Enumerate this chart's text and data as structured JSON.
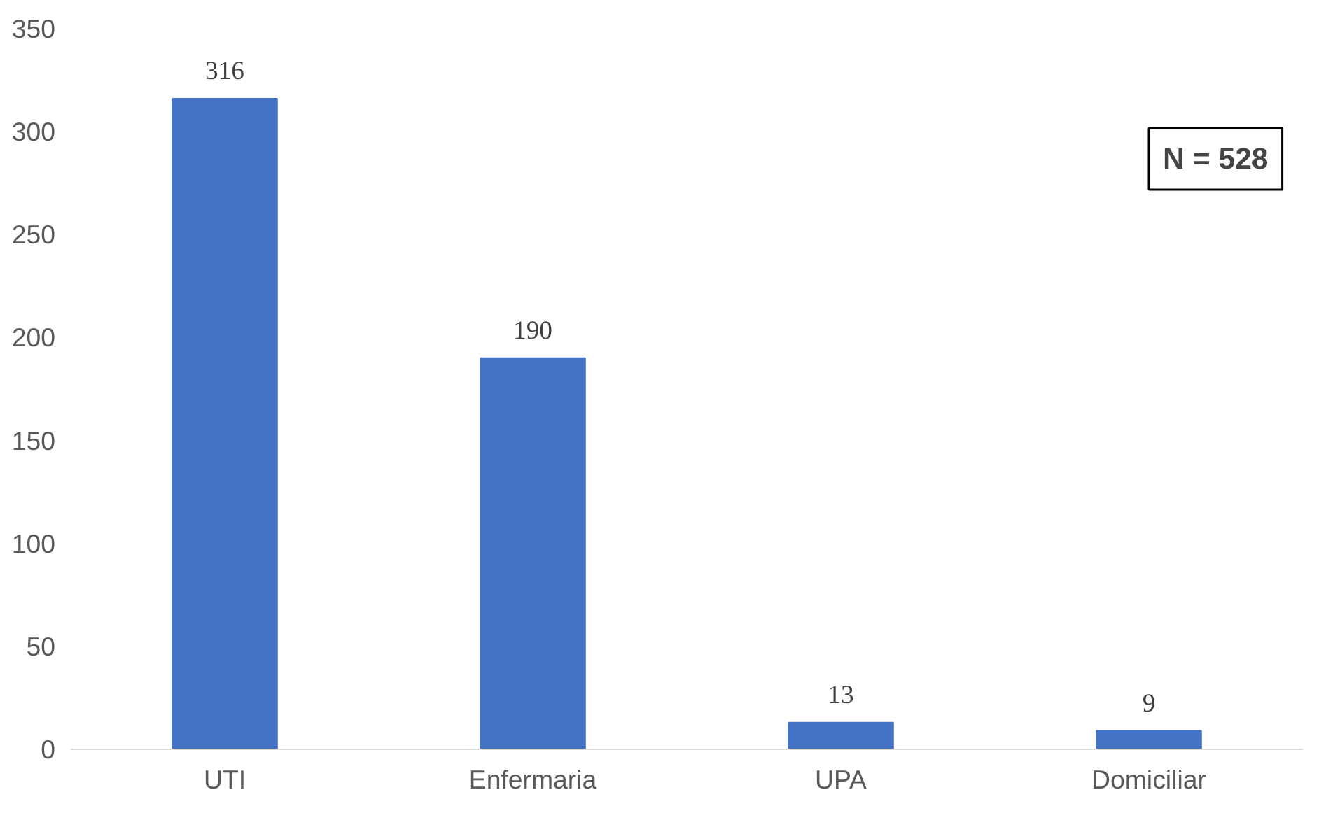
{
  "chart_data": {
    "type": "bar",
    "categories": [
      "UTI",
      "Enfermaria",
      "UPA",
      "Domiciliar"
    ],
    "values": [
      316,
      190,
      13,
      9
    ],
    "color": "#4472c4",
    "ylim": [
      0,
      350
    ],
    "yticks": [
      0,
      50,
      100,
      150,
      200,
      250,
      300,
      350
    ],
    "grid": false,
    "data_labels": true,
    "annotations": [
      "N = 528"
    ]
  }
}
